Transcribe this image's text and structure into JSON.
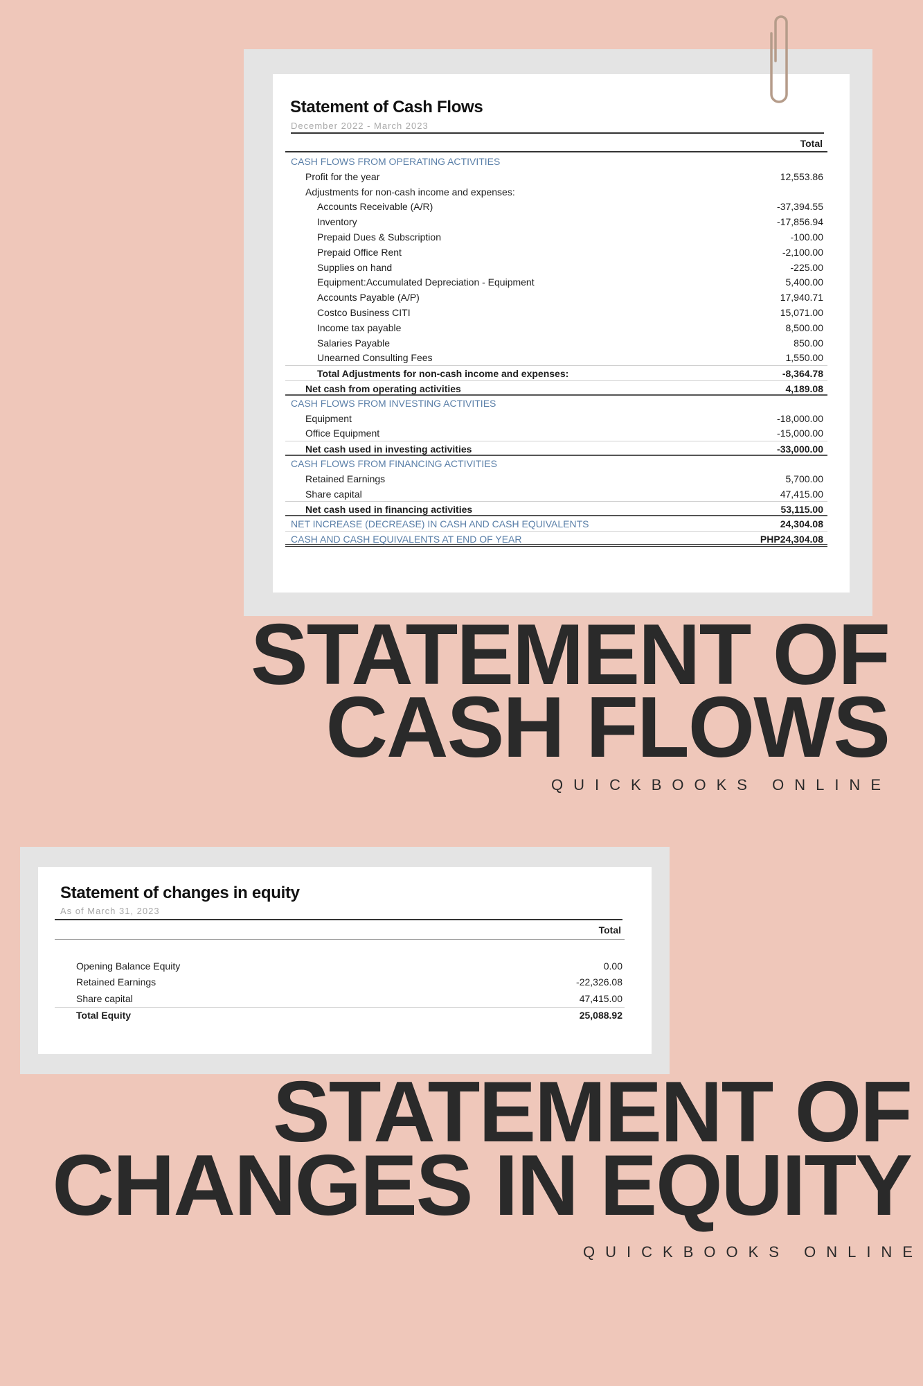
{
  "cash_flows": {
    "title": "Statement of Cash Flows",
    "period": "December 2022 - March 2023",
    "column_header": "Total",
    "rows": [
      {
        "type": "section",
        "label": "CASH FLOWS FROM OPERATING ACTIVITIES",
        "value": "",
        "indent": 0
      },
      {
        "type": "item",
        "label": "Profit for the year",
        "value": "12,553.86",
        "indent": 1
      },
      {
        "type": "item",
        "label": "Adjustments for non-cash income and expenses:",
        "value": "",
        "indent": 1
      },
      {
        "type": "item",
        "label": "Accounts Receivable (A/R)",
        "value": "-37,394.55",
        "indent": 2
      },
      {
        "type": "item",
        "label": "Inventory",
        "value": "-17,856.94",
        "indent": 2
      },
      {
        "type": "item",
        "label": "Prepaid Dues & Subscription",
        "value": "-100.00",
        "indent": 2
      },
      {
        "type": "item",
        "label": "Prepaid Office Rent",
        "value": "-2,100.00",
        "indent": 2
      },
      {
        "type": "item",
        "label": "Supplies on hand",
        "value": "-225.00",
        "indent": 2
      },
      {
        "type": "item",
        "label": "Equipment:Accumulated Depreciation - Equipment",
        "value": "5,400.00",
        "indent": 2
      },
      {
        "type": "item",
        "label": "Accounts Payable (A/P)",
        "value": "17,940.71",
        "indent": 2
      },
      {
        "type": "item",
        "label": "Costco Business CITI",
        "value": "15,071.00",
        "indent": 2
      },
      {
        "type": "item",
        "label": "Income tax payable",
        "value": "8,500.00",
        "indent": 2
      },
      {
        "type": "item",
        "label": "Salaries Payable",
        "value": "850.00",
        "indent": 2
      },
      {
        "type": "item",
        "label": "Unearned Consulting Fees",
        "value": "1,550.00",
        "indent": 2
      },
      {
        "type": "total",
        "label": "Total Adjustments for non-cash income and expenses:",
        "value": "-8,364.78",
        "indent": 2
      },
      {
        "type": "total",
        "label": "Net cash from operating activities",
        "value": "4,189.08",
        "indent": 1,
        "double": true
      },
      {
        "type": "section",
        "label": "CASH FLOWS FROM INVESTING ACTIVITIES",
        "value": "",
        "indent": 0
      },
      {
        "type": "item",
        "label": "Equipment",
        "value": "-18,000.00",
        "indent": 1
      },
      {
        "type": "item",
        "label": "Office Equipment",
        "value": "-15,000.00",
        "indent": 1
      },
      {
        "type": "total",
        "label": "Net cash used in investing activities",
        "value": "-33,000.00",
        "indent": 1,
        "double": true
      },
      {
        "type": "section",
        "label": "CASH FLOWS FROM FINANCING ACTIVITIES",
        "value": "",
        "indent": 0
      },
      {
        "type": "item",
        "label": "Retained Earnings",
        "value": "5,700.00",
        "indent": 1
      },
      {
        "type": "item",
        "label": "Share capital",
        "value": "47,415.00",
        "indent": 1
      },
      {
        "type": "total",
        "label": "Net cash used in financing activities",
        "value": "53,115.00",
        "indent": 1,
        "double": true
      },
      {
        "type": "grand",
        "label": "NET INCREASE (DECREASE) IN CASH AND CASH EQUIVALENTS",
        "value": "24,304.08",
        "indent": 0
      },
      {
        "type": "grand",
        "label": "CASH AND CASH EQUIVALENTS AT END OF YEAR",
        "value": "PHP24,304.08",
        "indent": 0,
        "final": true
      }
    ]
  },
  "equity": {
    "title": "Statement of changes in equity",
    "period": "As of March 31, 2023",
    "column_header": "Total",
    "rows": [
      {
        "type": "item",
        "label": "Opening Balance Equity",
        "value": "0.00"
      },
      {
        "type": "item",
        "label": "Retained Earnings",
        "value": "-22,326.08"
      },
      {
        "type": "item",
        "label": "Share capital",
        "value": "47,415.00"
      },
      {
        "type": "total",
        "label": "Total Equity",
        "value": "25,088.92"
      }
    ]
  },
  "headline1": {
    "line1": "STATEMENT OF",
    "line2": "CASH FLOWS",
    "sub": "QUICKBOOKS ONLINE"
  },
  "headline2": {
    "line1": "STATEMENT OF",
    "line2": "CHANGES IN EQUITY",
    "sub": "QUICKBOOKS ONLINE"
  },
  "colors": {
    "background": "#efc7ba",
    "frame": "#e4e4e4",
    "section_blue": "#5a7fa8",
    "headline": "#2a2a2a"
  }
}
